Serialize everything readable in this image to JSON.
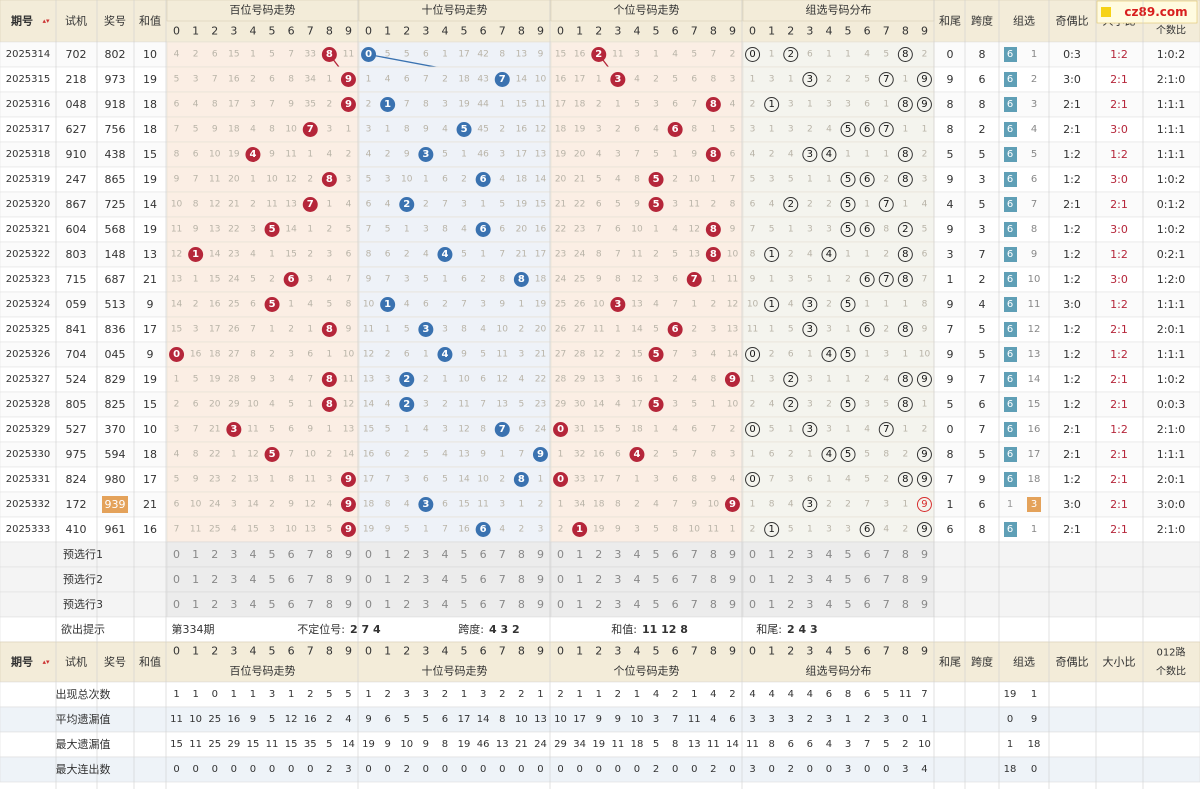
{
  "chart_data": {
    "type": "table",
    "headers": {
      "period": "期号",
      "sort_icon": "sort-arrows-icon",
      "test": "试机",
      "prize": "奖号",
      "sum": "和值",
      "groups": [
        "百位号码走势",
        "十位号码走势",
        "个位号码走势",
        "组选号码分布"
      ],
      "tail": "和尾",
      "span": "跨度",
      "combo": "组选",
      "oe": "奇偶比",
      "bs": "大小比",
      "route": "012路",
      "route2": "个数比"
    },
    "digits": [
      "0",
      "1",
      "2",
      "3",
      "4",
      "5",
      "6",
      "7",
      "8",
      "9"
    ],
    "rows": [
      {
        "p": "2025314",
        "t": "702",
        "a": "802",
        "s": "10",
        "h": "4 2 6 15 1 5 7 33 8 11",
        "te": "0 5 5 6 1 17 42 8 13 9",
        "u": "15 16 2 11 3 1 4 5 7 2",
        "g": "0 1 2 6 1 1 4 5 8 2",
        "tail": "0",
        "span": "8",
        "c": [
          "6",
          "1"
        ],
        "oe": "0:3",
        "bs": "1:2",
        "r": "1:0:2"
      },
      {
        "p": "2025315",
        "t": "218",
        "a": "973",
        "s": "19",
        "h": "5 3 7 16 2 6 8 34 1 9",
        "te": "1 4 6 7 2 18 43 7 14 10",
        "u": "16 17 1 3 4 2 5 6 8 3",
        "g": "1 3 1 3 2 2 5 7 1 9",
        "tail": "9",
        "span": "6",
        "c": [
          "6",
          "2"
        ],
        "oe": "3:0",
        "bs": "2:1",
        "r": "2:1:0"
      },
      {
        "p": "2025316",
        "t": "048",
        "a": "918",
        "s": "18",
        "h": "6 4 8 17 3 7 9 35 2 9",
        "te": "2 1 7 8 3 19 44 1 15 11",
        "u": "17 18 2 1 5 3 6 7 8 4",
        "g": "2 1 3 1 3 3 6 1 8 9",
        "tail": "8",
        "span": "8",
        "c": [
          "6",
          "3"
        ],
        "oe": "2:1",
        "bs": "2:1",
        "r": "1:1:1"
      },
      {
        "p": "2025317",
        "t": "627",
        "a": "756",
        "s": "18",
        "h": "7 5 9 18 4 8 10 7 3 1",
        "te": "3 1 8 9 4 5 45 2 16 12",
        "u": "18 19 3 2 6 4 6 8 1 5",
        "g": "3 1 3 2 4 5 6 7 1 1",
        "tail": "8",
        "span": "2",
        "c": [
          "6",
          "4"
        ],
        "oe": "2:1",
        "bs": "3:0",
        "r": "1:1:1"
      },
      {
        "p": "2025318",
        "t": "910",
        "a": "438",
        "s": "15",
        "h": "8 6 10 19 4 9 11 1 4 2",
        "te": "4 2 9 3 5 1 46 3 17 13",
        "u": "19 20 4 3 7 5 1 9 8 6",
        "g": "4 2 4 3 4 1 1 1 8 2",
        "tail": "5",
        "span": "5",
        "c": [
          "6",
          "5"
        ],
        "oe": "1:2",
        "bs": "1:2",
        "r": "1:1:1"
      },
      {
        "p": "2025319",
        "t": "247",
        "a": "865",
        "s": "19",
        "h": "9 7 11 20 1 10 12 2 8 3",
        "te": "5 3 10 1 6 2 6 4 18 14",
        "u": "20 21 5 4 8 5 2 10 1 7",
        "g": "5 3 5 1 1 5 6 2 8 3",
        "tail": "9",
        "span": "3",
        "c": [
          "6",
          "6"
        ],
        "oe": "1:2",
        "bs": "3:0",
        "r": "1:0:2"
      },
      {
        "p": "2025320",
        "t": "867",
        "a": "725",
        "s": "14",
        "h": "10 8 12 21 2 11 13 7 1 4",
        "te": "6 4 2 2 7 3 1 5 19 15",
        "u": "21 22 6 5 9 5 3 11 2 8",
        "g": "6 4 2 2 2 5 1 7 1 4",
        "tail": "4",
        "span": "5",
        "c": [
          "6",
          "7"
        ],
        "oe": "2:1",
        "bs": "2:1",
        "r": "0:1:2"
      },
      {
        "p": "2025321",
        "t": "604",
        "a": "568",
        "s": "19",
        "h": "11 9 13 22 3 5 14 1 2 5",
        "te": "7 5 1 3 8 4 6 6 20 16",
        "u": "22 23 7 6 10 1 4 12 8 9",
        "g": "7 5 1 3 3 5 6 8 2 5",
        "tail": "9",
        "span": "3",
        "c": [
          "6",
          "8"
        ],
        "oe": "1:2",
        "bs": "3:0",
        "r": "1:0:2"
      },
      {
        "p": "2025322",
        "t": "803",
        "a": "148",
        "s": "13",
        "h": "12 1 14 23 4 1 15 2 3 6",
        "te": "8 6 2 4 4 5 1 7 21 17",
        "u": "23 24 8 7 11 2 5 13 8 10",
        "g": "8 1 2 4 4 1 1 2 8 6",
        "tail": "3",
        "span": "7",
        "c": [
          "6",
          "9"
        ],
        "oe": "1:2",
        "bs": "1:2",
        "r": "0:2:1"
      },
      {
        "p": "2025323",
        "t": "715",
        "a": "687",
        "s": "21",
        "h": "13 1 15 24 5 2 6 3 4 7",
        "te": "9 7 3 5 1 6 2 8 8 18",
        "u": "24 25 9 8 12 3 6 7 1 11",
        "g": "9 1 3 5 1 2 6 7 8 7",
        "tail": "1",
        "span": "2",
        "c": [
          "6",
          "10"
        ],
        "oe": "1:2",
        "bs": "3:0",
        "r": "1:2:0"
      },
      {
        "p": "2025324",
        "t": "059",
        "a": "513",
        "s": "9",
        "h": "14 2 16 25 6 5 1 4 5 8",
        "te": "10 1 4 6 2 7 3 9 1 19",
        "u": "25 26 10 3 13 4 7 1 2 12",
        "g": "10 1 4 3 2 5 1 1 1 8",
        "tail": "9",
        "span": "4",
        "c": [
          "6",
          "11"
        ],
        "oe": "3:0",
        "bs": "1:2",
        "r": "1:1:1"
      },
      {
        "p": "2025325",
        "t": "841",
        "a": "836",
        "s": "17",
        "h": "15 3 17 26 7 1 2 1 8 9",
        "te": "11 1 5 3 3 8 4 10 2 20",
        "u": "26 27 11 1 14 5 6 2 3 13",
        "g": "11 1 5 3 3 1 6 2 8 9",
        "tail": "7",
        "span": "5",
        "c": [
          "6",
          "12"
        ],
        "oe": "1:2",
        "bs": "2:1",
        "r": "2:0:1"
      },
      {
        "p": "2025326",
        "t": "704",
        "a": "045",
        "s": "9",
        "h": "0 16 18 27 8 2 3 6 1 10",
        "te": "12 2 6 1 4 9 5 11 3 21",
        "u": "27 28 12 2 15 5 7 3 4 14",
        "g": "0 2 6 1 4 5 1 3 1 10",
        "tail": "9",
        "span": "5",
        "c": [
          "6",
          "13"
        ],
        "oe": "1:2",
        "bs": "1:2",
        "r": "1:1:1"
      },
      {
        "p": "2025327",
        "t": "524",
        "a": "829",
        "s": "19",
        "h": "1 5 19 28 9 3 4 7 8 11",
        "te": "13 3 2 2 1 10 6 12 4 22",
        "u": "28 29 13 3 16 1 2 4 8 9",
        "g": "1 3 2 3 1 1 2 4 8 9",
        "tail": "9",
        "span": "7",
        "c": [
          "6",
          "14"
        ],
        "oe": "1:2",
        "bs": "2:1",
        "r": "1:0:2"
      },
      {
        "p": "2025328",
        "t": "805",
        "a": "825",
        "s": "15",
        "h": "2 6 20 29 10 4 5 1 8 12",
        "te": "14 4 2 3 2 11 7 13 5 23",
        "u": "29 30 14 4 17 5 3 5 1 10",
        "g": "2 4 2 3 2 5 3 5 8 1",
        "tail": "5",
        "span": "6",
        "c": [
          "6",
          "15"
        ],
        "oe": "1:2",
        "bs": "2:1",
        "r": "0:0:3"
      },
      {
        "p": "2025329",
        "t": "527",
        "a": "370",
        "s": "10",
        "h": "3 7 21 3 11 5 6 9 1 13",
        "te": "15 5 1 4 3 12 8 7 6 24",
        "u": "0 31 15 5 18 1 4 6 7 2",
        "g": "0 5 1 3 3 1 4 7 1 2",
        "tail": "0",
        "span": "7",
        "c": [
          "6",
          "16"
        ],
        "oe": "2:1",
        "bs": "1:2",
        "r": "2:1:0"
      },
      {
        "p": "2025330",
        "t": "975",
        "a": "594",
        "s": "18",
        "h": "4 8 22 1 12 5 7 10 2 14",
        "te": "16 6 2 5 4 13 9 1 7 9",
        "u": "1 32 16 6 4 2 5 7 8 3",
        "g": "1 6 2 1 4 5 5 8 2 9",
        "tail": "8",
        "span": "5",
        "c": [
          "6",
          "17"
        ],
        "oe": "2:1",
        "bs": "2:1",
        "r": "1:1:1"
      },
      {
        "p": "2025331",
        "t": "824",
        "a": "980",
        "s": "17",
        "h": "5 9 23 2 13 1 8 11 3 9",
        "te": "17 7 3 6 5 14 10 2 8 1",
        "u": "0 33 17 7 1 3 6 8 9 4",
        "g": "0 7 3 6 1 4 5 2 8 9",
        "tail": "7",
        "span": "9",
        "c": [
          "6",
          "18"
        ],
        "oe": "1:2",
        "bs": "2:1",
        "r": "2:0:1"
      },
      {
        "p": "2025332",
        "t": "172",
        "a": "939",
        "s": "21",
        "h": "6 10 24 3 14 2 9 12 4 9",
        "te": "18 8 4 3 6 15 11 3 1 2",
        "u": "1 34 18 8 2 4 7 9 10 9",
        "g": "1 8 4 3 2 2 7 3 1 9",
        "tail": "1",
        "span": "6",
        "c": [
          "1",
          "3"
        ],
        "oe": "3:0",
        "bs": "2:1",
        "r": "3:0:0",
        "hl": true
      },
      {
        "p": "2025333",
        "t": "410",
        "a": "961",
        "s": "16",
        "h": "7 11 25 4 15 3 10 13 5 9",
        "te": "19 9 5 1 7 16 6 4 2 3",
        "u": "2 1 19 9 3 5 8 10 11 1",
        "g": "2 1 5 1 3 3 6 4 2 9",
        "tail": "6",
        "span": "8",
        "c": [
          "6",
          "1"
        ],
        "oe": "2:1",
        "bs": "2:1",
        "r": "2:1:0"
      }
    ],
    "pre_rows": [
      "预选行1",
      "预选行2",
      "预选行3"
    ],
    "hint": {
      "label": "欲出提示",
      "period": "第334期",
      "pos_label": "不定位号:",
      "pos_val": "2 7 4",
      "span_label": "跨度:",
      "span_val": "4 3 2",
      "sum_label": "和值:",
      "sum_val": "11 12 8",
      "tail_label": "和尾:",
      "tail_val": "2 4 3"
    },
    "stats": [
      {
        "label": "出现总次数",
        "h": "1 1 0 1 1 3 1 2 5 5",
        "te": "1 2 3 3 2 1 3 2 2 1",
        "u": "2 1 1 2 1 4 2 1 4 2",
        "g": "4 4 4 4 6 8 6 5 11 7",
        "c": [
          "19",
          "1"
        ]
      },
      {
        "label": "平均遗漏值",
        "h": "11 10 25 16 9 5 12 16 2 4",
        "te": "9 6 5 5 6 17 14 8 10 13",
        "u": "10 17 9 9 10 3 7 11 4 6",
        "g": "3 3 3 2 3 1 2 3 0 1",
        "c": [
          "0",
          "9"
        ]
      },
      {
        "label": "最大遗漏值",
        "h": "15 11 25 29 15 11 15 35 5 14",
        "te": "19 9 10 9 8 19 46 13 21 24",
        "u": "29 34 19 11 18 5 8 13 11 14",
        "g": "11 8 6 6 4 3 7 5 2 10",
        "c": [
          "1",
          "18"
        ]
      },
      {
        "label": "最大连出数",
        "h": "0 0 0 0 0 0 0 0 2 3",
        "te": "0 0 2 0 0 0 0 0 0 0",
        "u": "0 0 0 0 0 2 0 0 2 0",
        "g": "3 0 2 0 0 3 0 0 3 4",
        "c": [
          "18",
          "0"
        ]
      }
    ],
    "colors": {
      "hundreds": "#b5263a",
      "tens": "#3a72b0",
      "units": "#b5263a",
      "combo_badge": "#5f9fb6",
      "highlight": "#e4a25a"
    }
  },
  "logo": {
    "text": "cz89.com"
  }
}
